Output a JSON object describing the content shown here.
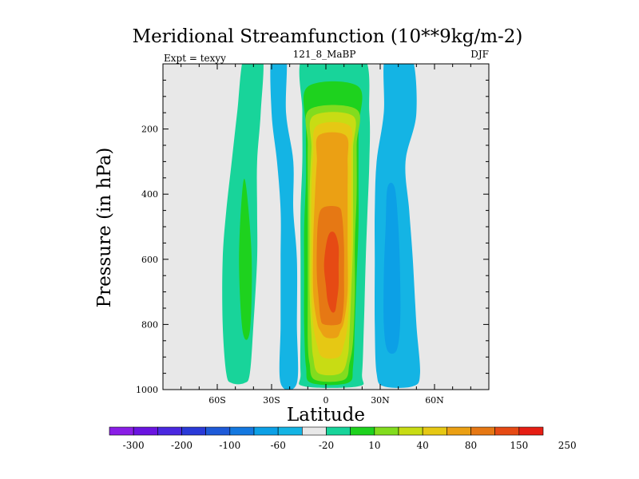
{
  "chart_data": {
    "type": "heatmap",
    "title": "Meridional Streamfunction (10**9kg/m-2)",
    "subtitle_left": "Expt = texyy",
    "subtitle_center": "121_8_MaBP",
    "subtitle_right": "DJF",
    "xlabel": "Latitude",
    "ylabel": "Pressure (in hPa)",
    "xlim": [
      -90,
      90
    ],
    "ylim": [
      0,
      1000
    ],
    "y_inverted": true,
    "x_ticks": [
      {
        "value": -60,
        "label": "60S"
      },
      {
        "value": -30,
        "label": "30S"
      },
      {
        "value": 0,
        "label": "0"
      },
      {
        "value": 30,
        "label": "30N"
      },
      {
        "value": 60,
        "label": "60N"
      }
    ],
    "y_ticks": [
      {
        "value": 200,
        "label": "200"
      },
      {
        "value": 400,
        "label": "400"
      },
      {
        "value": 600,
        "label": "600"
      },
      {
        "value": 800,
        "label": "800"
      },
      {
        "value": 1000,
        "label": "1000"
      }
    ],
    "colorbar": {
      "colors": [
        "#8a1ee6",
        "#6a14e0",
        "#4a28e0",
        "#2a3ad8",
        "#1e5ad8",
        "#1478e0",
        "#0ca0e6",
        "#14b4e4",
        "#e8e8e8",
        "#18d49a",
        "#1ed21e",
        "#82dc1e",
        "#c8dc14",
        "#e6c814",
        "#eba014",
        "#e67814",
        "#e64a14",
        "#e61e14"
      ],
      "labels": [
        "-300",
        "-200",
        "-100",
        "-60",
        "-20",
        "10",
        "40",
        "80",
        "150",
        "250"
      ]
    },
    "contour_levels": [
      -300,
      -250,
      -200,
      -150,
      -100,
      -80,
      -60,
      -40,
      -20,
      -10,
      10,
      20,
      40,
      60,
      80,
      100,
      150,
      200,
      250,
      300
    ],
    "background_color": "#e8e8e8",
    "regions": [
      {
        "name": "sh-outer-cell",
        "color": "#18d49a",
        "level_from": 10,
        "level_to": 20,
        "left": [
          [
            -45,
            0
          ],
          [
            -49,
            150
          ],
          [
            -52,
            300
          ],
          [
            -55,
            450
          ],
          [
            -57,
            600
          ],
          [
            -57,
            800
          ],
          [
            -55,
            950
          ],
          [
            -52,
            980
          ]
        ],
        "right": [
          [
            -35,
            0
          ],
          [
            -36,
            150
          ],
          [
            -38,
            300
          ],
          [
            -38,
            450
          ],
          [
            -38,
            600
          ],
          [
            -40,
            800
          ],
          [
            -42,
            950
          ],
          [
            -45,
            980
          ]
        ]
      },
      {
        "name": "sh-outer-core",
        "color": "#1ed21e",
        "level_from": 20,
        "level_to": 40,
        "left": [
          [
            -46,
            380
          ],
          [
            -48,
            600
          ],
          [
            -46,
            820
          ]
        ],
        "right": [
          [
            -44,
            380
          ],
          [
            -41,
            600
          ],
          [
            -42,
            820
          ]
        ]
      },
      {
        "name": "sh-negative-cell",
        "color": "#14b4e4",
        "level_from": -20,
        "level_to": -10,
        "left": [
          [
            -30,
            0
          ],
          [
            -30,
            150
          ],
          [
            -27,
            300
          ],
          [
            -25,
            450
          ],
          [
            -25,
            600
          ],
          [
            -25,
            800
          ],
          [
            -25,
            980
          ]
        ],
        "right": [
          [
            -22,
            0
          ],
          [
            -22,
            150
          ],
          [
            -18,
            300
          ],
          [
            -18,
            450
          ],
          [
            -16,
            600
          ],
          [
            -16,
            800
          ],
          [
            -16,
            980
          ]
        ]
      },
      {
        "name": "hadley-10",
        "color": "#18d49a",
        "level_from": 10,
        "level_to": 20,
        "left": [
          [
            -12,
            0
          ],
          [
            -13,
            150
          ],
          [
            -13,
            300
          ],
          [
            -14,
            450
          ],
          [
            -14,
            600
          ],
          [
            -14,
            800
          ],
          [
            -14,
            950
          ],
          [
            -12,
            990
          ]
        ],
        "right": [
          [
            20,
            0
          ],
          [
            24,
            150
          ],
          [
            24,
            300
          ],
          [
            23,
            450
          ],
          [
            22,
            600
          ],
          [
            21,
            800
          ],
          [
            20,
            950
          ],
          [
            18,
            990
          ]
        ]
      },
      {
        "name": "hadley-20",
        "color": "#1ed21e",
        "level_from": 20,
        "level_to": 40,
        "left": [
          [
            -10,
            70
          ],
          [
            -11,
            200
          ],
          [
            -11,
            350
          ],
          [
            -12,
            500
          ],
          [
            -12,
            650
          ],
          [
            -12,
            800
          ],
          [
            -11,
            930
          ],
          [
            -8,
            980
          ]
        ],
        "right": [
          [
            18,
            70
          ],
          [
            18,
            200
          ],
          [
            18,
            350
          ],
          [
            18,
            500
          ],
          [
            17,
            650
          ],
          [
            16,
            800
          ],
          [
            15,
            930
          ],
          [
            12,
            980
          ]
        ]
      },
      {
        "name": "hadley-40",
        "color": "#82dc1e",
        "level_from": 40,
        "level_to": 60,
        "left": [
          [
            -9,
            140
          ],
          [
            -10,
            250
          ],
          [
            -10,
            400
          ],
          [
            -10,
            550
          ],
          [
            -10,
            700
          ],
          [
            -10,
            850
          ],
          [
            -9,
            920
          ],
          [
            -6,
            970
          ]
        ],
        "right": [
          [
            17,
            140
          ],
          [
            17,
            250
          ],
          [
            17,
            400
          ],
          [
            16,
            550
          ],
          [
            16,
            700
          ],
          [
            15,
            850
          ],
          [
            13,
            920
          ],
          [
            10,
            970
          ]
        ]
      },
      {
        "name": "hadley-60",
        "color": "#c8dc14",
        "level_from": 60,
        "level_to": 80,
        "left": [
          [
            -7,
            160
          ],
          [
            -8,
            260
          ],
          [
            -9,
            400
          ],
          [
            -9,
            550
          ],
          [
            -9,
            700
          ],
          [
            -8,
            830
          ],
          [
            -7,
            900
          ],
          [
            -4,
            950
          ]
        ],
        "right": [
          [
            15,
            160
          ],
          [
            15,
            260
          ],
          [
            15,
            400
          ],
          [
            15,
            550
          ],
          [
            14,
            700
          ],
          [
            13,
            830
          ],
          [
            12,
            900
          ],
          [
            8,
            950
          ]
        ]
      },
      {
        "name": "hadley-80",
        "color": "#e6c814",
        "level_from": 80,
        "level_to": 100,
        "left": [
          [
            -5,
            190
          ],
          [
            -7,
            280
          ],
          [
            -8,
            400
          ],
          [
            -8,
            550
          ],
          [
            -8,
            700
          ],
          [
            -7,
            800
          ],
          [
            -5,
            860
          ],
          [
            -2,
            900
          ]
        ],
        "right": [
          [
            13,
            190
          ],
          [
            14,
            280
          ],
          [
            14,
            400
          ],
          [
            14,
            550
          ],
          [
            13,
            700
          ],
          [
            12,
            800
          ],
          [
            10,
            860
          ],
          [
            7,
            900
          ]
        ]
      },
      {
        "name": "hadley-100",
        "color": "#eba014",
        "level_from": 100,
        "level_to": 150,
        "left": [
          [
            -4,
            220
          ],
          [
            -5,
            300
          ],
          [
            -6,
            400
          ],
          [
            -7,
            550
          ],
          [
            -7,
            700
          ],
          [
            -5,
            790
          ],
          [
            -3,
            820
          ],
          [
            0,
            840
          ]
        ],
        "right": [
          [
            11,
            220
          ],
          [
            12,
            300
          ],
          [
            12,
            400
          ],
          [
            12,
            550
          ],
          [
            12,
            700
          ],
          [
            10,
            790
          ],
          [
            8,
            820
          ],
          [
            6,
            840
          ]
        ]
      },
      {
        "name": "hadley-150",
        "color": "#e67814",
        "level_from": 150,
        "level_to": 200,
        "left": [
          [
            -1,
            440
          ],
          [
            -4,
            470
          ],
          [
            -5,
            560
          ],
          [
            -5,
            650
          ],
          [
            -4,
            720
          ],
          [
            -3,
            780
          ],
          [
            -1,
            800
          ]
        ],
        "right": [
          [
            7,
            440
          ],
          [
            9,
            470
          ],
          [
            10,
            560
          ],
          [
            10,
            650
          ],
          [
            10,
            720
          ],
          [
            9,
            780
          ],
          [
            7,
            800
          ]
        ]
      },
      {
        "name": "hadley-200",
        "color": "#e64a14",
        "level_from": 200,
        "level_to": 250,
        "left": [
          [
            2,
            520
          ],
          [
            0,
            560
          ],
          [
            -1,
            620
          ],
          [
            0,
            680
          ],
          [
            1,
            730
          ],
          [
            3,
            760
          ]
        ],
        "right": [
          [
            5,
            520
          ],
          [
            7,
            560
          ],
          [
            7,
            620
          ],
          [
            7,
            680
          ],
          [
            6,
            730
          ],
          [
            5,
            760
          ]
        ]
      },
      {
        "name": "nh-negative-outer",
        "color": "#14b4e4",
        "level_from": -20,
        "level_to": -10,
        "left": [
          [
            33,
            0
          ],
          [
            32,
            150
          ],
          [
            28,
            300
          ],
          [
            27,
            450
          ],
          [
            27,
            600
          ],
          [
            27,
            800
          ],
          [
            28,
            950
          ],
          [
            32,
            990
          ]
        ],
        "right": [
          [
            47,
            0
          ],
          [
            50,
            150
          ],
          [
            44,
            300
          ],
          [
            46,
            450
          ],
          [
            48,
            600
          ],
          [
            50,
            800
          ],
          [
            52,
            950
          ],
          [
            48,
            990
          ]
        ]
      },
      {
        "name": "nh-negative-core",
        "color": "#0ca0e6",
        "level_from": -40,
        "level_to": -20,
        "left": [
          [
            34,
            380
          ],
          [
            33,
            500
          ],
          [
            32,
            650
          ],
          [
            32,
            800
          ],
          [
            34,
            880
          ]
        ],
        "right": [
          [
            38,
            380
          ],
          [
            40,
            500
          ],
          [
            41,
            650
          ],
          [
            41,
            800
          ],
          [
            39,
            880
          ]
        ]
      }
    ]
  }
}
